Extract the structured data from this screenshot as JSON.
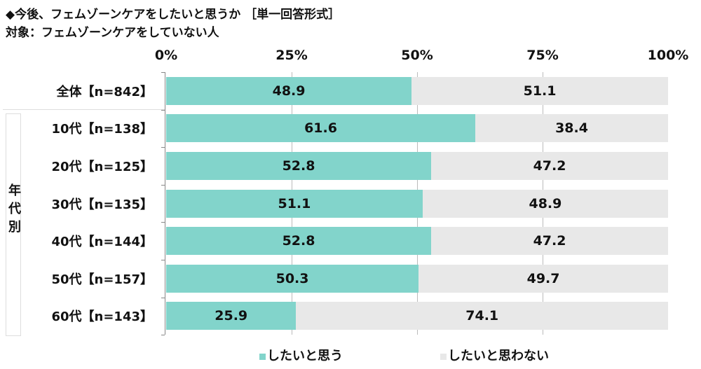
{
  "title_line1": "◆今後、フェムゾーンケアをしたいと思うか ［単一回答形式］",
  "title_line2": "対象：フェムゾーンケアをしていない人",
  "chart_data": {
    "type": "bar",
    "orientation": "horizontal",
    "stacked": true,
    "xlim": [
      0,
      100
    ],
    "ticks": [
      "0%",
      "25%",
      "50%",
      "75%",
      "100%"
    ],
    "group_label": "年代別",
    "categories": [
      "全体【n=842】",
      "10代【n=138】",
      "20代【n=125】",
      "30代【n=135】",
      "40代【n=144】",
      "50代【n=157】",
      "60代【n=143】"
    ],
    "series": [
      {
        "name": "したいと思う",
        "color": "#82d4cb",
        "values": [
          48.9,
          61.6,
          52.8,
          51.1,
          52.8,
          50.3,
          25.9
        ]
      },
      {
        "name": "したいと思わない",
        "color": "#e8e8e8",
        "values": [
          51.1,
          38.4,
          47.2,
          48.9,
          47.2,
          49.7,
          74.1
        ]
      }
    ],
    "legend_position": "bottom",
    "grid": true
  }
}
